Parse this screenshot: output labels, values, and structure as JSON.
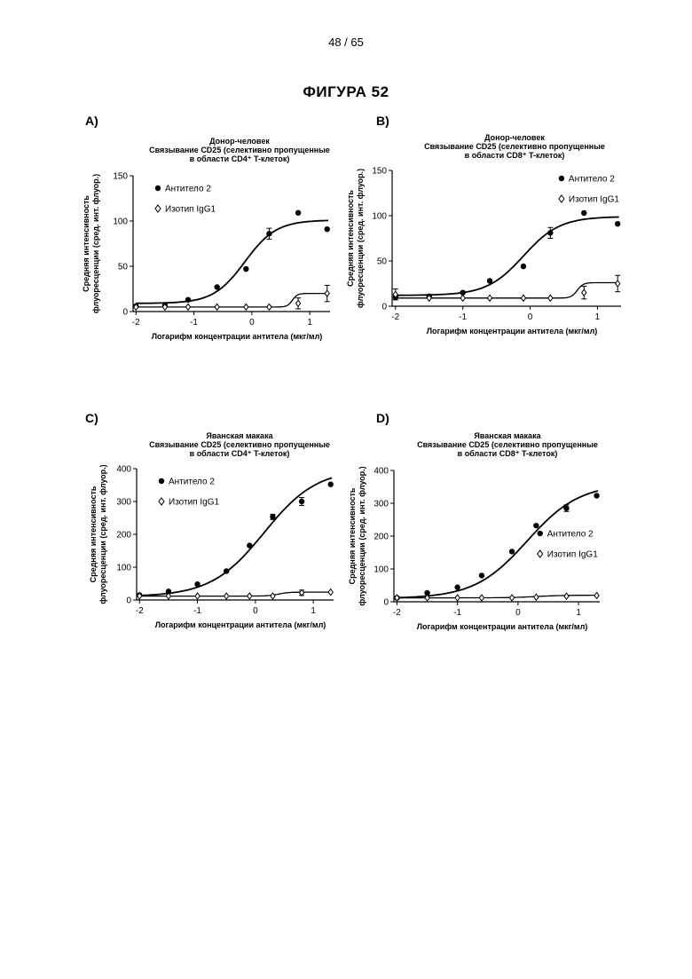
{
  "page": {
    "number": "48 / 65",
    "figure_title": "ФИГУРА 52"
  },
  "chart_data": [
    {
      "panel": "A)",
      "type": "scatter",
      "title_lines": [
        "Донор-человек",
        "Связывание CD25 (селективно пропущенные",
        "в области CD4⁺ T-клеток)"
      ],
      "xlabel": "Логарифм концентрации антитела (мкг/мл)",
      "ylabel": [
        "Средняя интенсивность",
        "флуоресценции (сред. инт. флуор.)"
      ],
      "xlim": [
        -2.05,
        1.35
      ],
      "ylim": [
        0,
        150
      ],
      "xticks": [
        "-2",
        "-1",
        "0",
        "1"
      ],
      "yticks": [
        "0",
        "50",
        "100",
        "150"
      ],
      "legend_position": "top-left",
      "series": [
        {
          "name": "Антитело 2",
          "marker": "filled-circle",
          "x": [
            -2,
            -1.5,
            -1.1,
            -0.6,
            -0.1,
            0.3,
            0.8,
            1.3
          ],
          "y": [
            6,
            7,
            13,
            27,
            47,
            86,
            109,
            91
          ],
          "err": [
            0,
            0,
            0,
            0,
            0,
            6,
            0,
            0
          ],
          "fit": {
            "bottom": 9,
            "top": 101,
            "ec50_log": -0.12,
            "hill": 1.6
          }
        },
        {
          "name": "Изотип IgG1",
          "marker": "open-diamond",
          "x": [
            -2,
            -1.5,
            -1.1,
            -0.6,
            -0.1,
            0.3,
            0.8,
            1.3
          ],
          "y": [
            5,
            5,
            5,
            5,
            5,
            5,
            9,
            20
          ],
          "err": [
            0,
            0,
            0,
            0,
            0,
            0,
            6,
            9
          ],
          "fit": {
            "bottom": 5,
            "top": 20,
            "ec50_log": 0.7,
            "hill": 10
          }
        }
      ]
    },
    {
      "panel": "B)",
      "type": "scatter",
      "title_lines": [
        "Донор-человек",
        "Связывание CD25 (селективно пропущенные",
        "в области CD8⁺ T-клеток)"
      ],
      "xlabel": "Логарифм концентрации антитела (мкг/мл)",
      "ylabel": [
        "Средняя интенсивность",
        "флуоресценции (сред. инт. флуор.)"
      ],
      "xlim": [
        -2.05,
        1.35
      ],
      "ylim": [
        0,
        150
      ],
      "xticks": [
        "-2",
        "-1",
        "0",
        "1"
      ],
      "yticks": [
        "0",
        "50",
        "100",
        "150"
      ],
      "legend_position": "top-right",
      "series": [
        {
          "name": "Антитело 2",
          "marker": "filled-circle",
          "x": [
            -2,
            -1.5,
            -1,
            -0.6,
            -0.1,
            0.3,
            0.8,
            1.3
          ],
          "y": [
            10,
            11,
            15,
            28,
            44,
            81,
            103,
            91
          ],
          "err": [
            0,
            0,
            0,
            0,
            0,
            6,
            0,
            0
          ],
          "fit": {
            "bottom": 12,
            "top": 99,
            "ec50_log": -0.1,
            "hill": 1.6
          }
        },
        {
          "name": "Изотип IgG1",
          "marker": "open-diamond",
          "x": [
            -2,
            -1.5,
            -1,
            -0.6,
            -0.1,
            0.3,
            0.8,
            1.3
          ],
          "y": [
            13,
            9,
            9,
            9,
            9,
            9,
            15,
            25
          ],
          "err": [
            6,
            0,
            0,
            0,
            0,
            0,
            7,
            9
          ],
          "fit": {
            "bottom": 9,
            "top": 26,
            "ec50_log": 0.7,
            "hill": 10
          }
        }
      ]
    },
    {
      "panel": "C)",
      "type": "scatter",
      "title_lines": [
        "Яванская макака",
        "Связывание CD25 (селективно пропущенные",
        "в области CD4⁺ T-клеток)"
      ],
      "xlabel": "Логарифм концентрации антитела (мкг/мл)",
      "ylabel": [
        "Средняя интенсивность",
        "флуоресценции (сред. инт. флуор.)"
      ],
      "xlim": [
        -2.05,
        1.35
      ],
      "ylim": [
        0,
        400
      ],
      "xticks": [
        "-2",
        "-1",
        "0",
        "1"
      ],
      "yticks": [
        "0",
        "100",
        "200",
        "300",
        "400"
      ],
      "legend_position": "top-left",
      "series": [
        {
          "name": "Антитело 2",
          "marker": "filled-circle",
          "x": [
            -2,
            -1.5,
            -1,
            -0.5,
            -0.1,
            0.3,
            0.8,
            1.3
          ],
          "y": [
            15,
            26,
            48,
            88,
            166,
            253,
            300,
            352
          ],
          "err": [
            0,
            0,
            0,
            0,
            0,
            8,
            12,
            0
          ],
          "fit": {
            "bottom": 10,
            "top": 400,
            "ec50_log": 0.15,
            "hill": 0.95
          }
        },
        {
          "name": "Изотип IgG1",
          "marker": "open-diamond",
          "x": [
            -2,
            -1.5,
            -1,
            -0.5,
            -0.1,
            0.3,
            0.8,
            1.3
          ],
          "y": [
            12,
            12,
            12,
            12,
            12,
            12,
            22,
            24
          ],
          "err": [
            0,
            0,
            0,
            0,
            0,
            0,
            8,
            0
          ],
          "fit": {
            "bottom": 12,
            "top": 24,
            "ec50_log": 0.4,
            "hill": 5
          }
        }
      ]
    },
    {
      "panel": "D)",
      "type": "scatter",
      "title_lines": [
        "Яванская макака",
        "Связывание CD25 (селективно пропущенные",
        "в области CD8⁺ T-клеток)"
      ],
      "xlabel": "Логарифм концентрации антитела (мкг/мл)",
      "ylabel": [
        "Средняя интенсивность",
        "флуоресценции (сред. инт. флуор.)"
      ],
      "xlim": [
        -2.05,
        1.35
      ],
      "ylim": [
        0,
        400
      ],
      "xticks": [
        "-2",
        "-1",
        "0",
        "1"
      ],
      "yticks": [
        "0",
        "100",
        "200",
        "300",
        "400"
      ],
      "legend_position": "center-right",
      "series": [
        {
          "name": "Антитело 2",
          "marker": "filled-circle",
          "x": [
            -2,
            -1.5,
            -1,
            -0.6,
            -0.1,
            0.3,
            0.8,
            1.3
          ],
          "y": [
            12,
            27,
            44,
            80,
            153,
            232,
            285,
            323
          ],
          "err": [
            0,
            0,
            0,
            0,
            0,
            0,
            10,
            0
          ],
          "fit": {
            "bottom": 10,
            "top": 360,
            "ec50_log": 0.15,
            "hill": 1.0
          }
        },
        {
          "name": "Изотип IgG1",
          "marker": "open-diamond",
          "x": [
            -2,
            -1.5,
            -1,
            -0.6,
            -0.1,
            0.3,
            0.8,
            1.3
          ],
          "y": [
            12,
            12,
            12,
            12,
            12,
            14,
            17,
            19
          ],
          "err": [
            0,
            0,
            0,
            0,
            0,
            0,
            0,
            0
          ],
          "fit": {
            "bottom": 12,
            "top": 20,
            "ec50_log": 0.3,
            "hill": 2
          }
        }
      ]
    }
  ]
}
